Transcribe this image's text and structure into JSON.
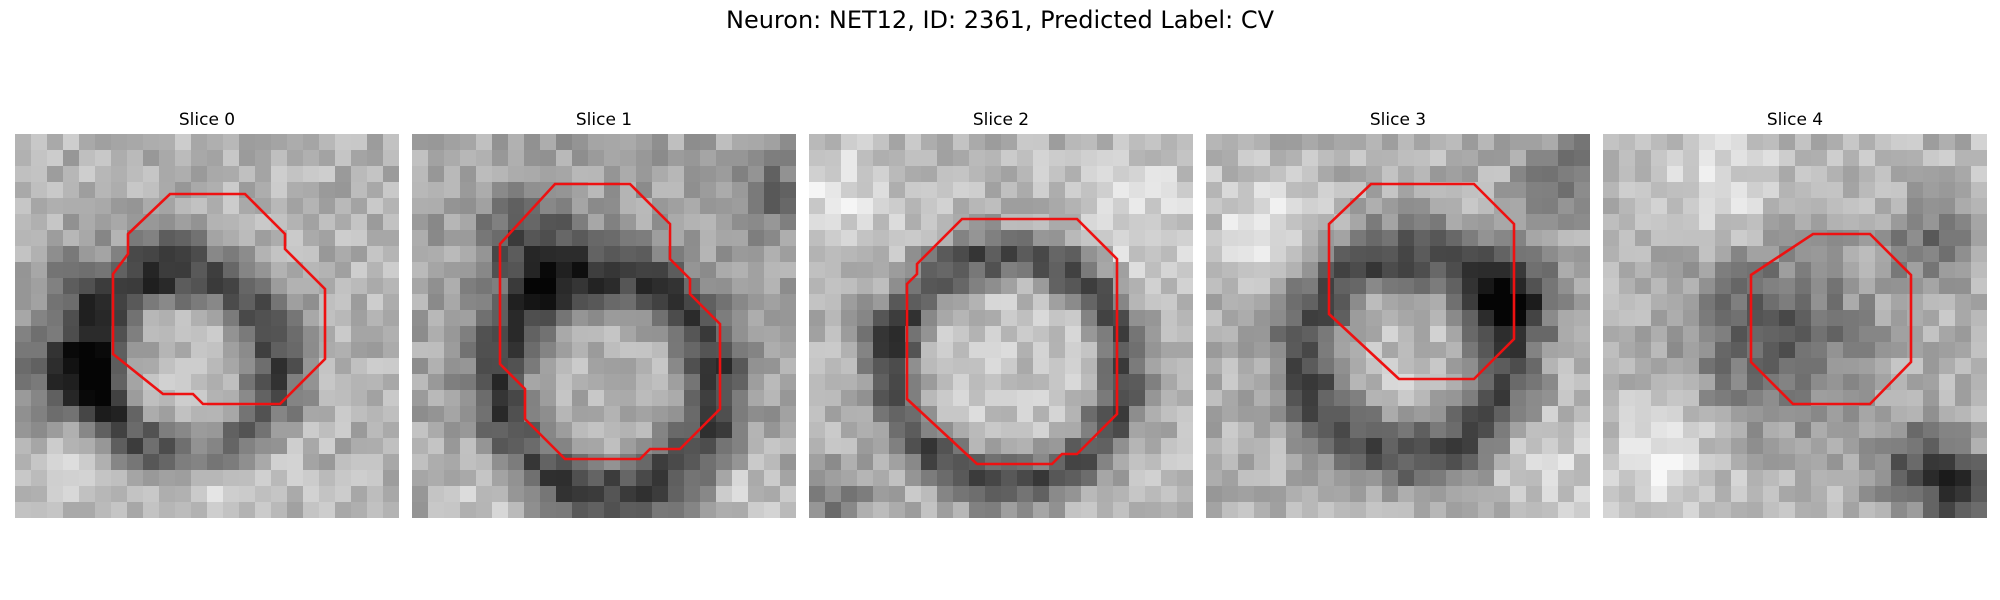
{
  "figure": {
    "title": "Neuron: NET12, ID: 2361, Predicted Label: CV"
  },
  "colors": {
    "outline": "#ee1111",
    "background": "#ffffff"
  },
  "slices": [
    {
      "title": "Slice 0"
    },
    {
      "title": "Slice 1"
    },
    {
      "title": "Slice 2"
    },
    {
      "title": "Slice 3"
    },
    {
      "title": "Slice 4"
    }
  ]
}
